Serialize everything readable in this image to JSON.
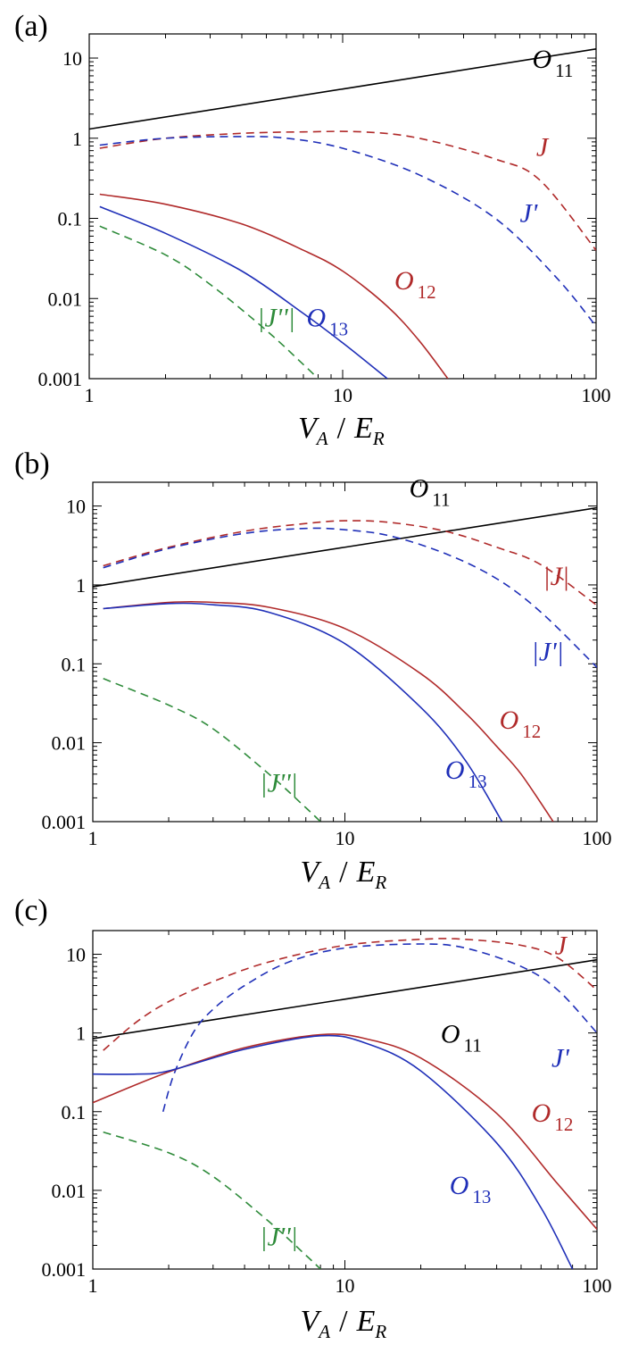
{
  "figure": {
    "panel_labels": [
      "(a)",
      "(b)",
      "(c)"
    ],
    "x_axis_label": {
      "main1": "V",
      "sub1": "A",
      "sep": "/",
      "main2": "E",
      "sub2": "R"
    },
    "colors": {
      "O11": "#000000",
      "O12": "#b02a2a",
      "O13": "#1f2fb8",
      "J": "#b02a2a",
      "Jp": "#1f2fb8",
      "Jpp": "#2e8b3a"
    }
  },
  "chart_data": [
    {
      "type": "line",
      "panel": "(a)",
      "xscale": "log",
      "yscale": "log",
      "xlim": [
        1,
        100
      ],
      "ylim": [
        0.001,
        20
      ],
      "xticks": [
        "1",
        "10",
        "100"
      ],
      "yticks": [
        "0.001",
        "0.01",
        "0.1",
        "1",
        "10"
      ],
      "xlabel": "V_A / E_R",
      "series": [
        {
          "name": "O11",
          "style": "solid",
          "x": [
            1,
            100
          ],
          "y": [
            1.3,
            13
          ]
        },
        {
          "name": "J",
          "style": "dashed",
          "x": [
            1.1,
            2,
            4,
            7,
            12,
            20,
            40,
            60,
            100
          ],
          "y": [
            0.75,
            1.0,
            1.15,
            1.2,
            1.2,
            1.0,
            0.55,
            0.3,
            0.04
          ]
        },
        {
          "name": "J'",
          "style": "dashed",
          "x": [
            1.1,
            2,
            4,
            6,
            10,
            20,
            40,
            70,
            100
          ],
          "y": [
            0.82,
            1.0,
            1.05,
            1.0,
            0.75,
            0.35,
            0.1,
            0.018,
            0.0045
          ]
        },
        {
          "name": "O12",
          "style": "solid",
          "x": [
            1.1,
            2,
            4,
            7,
            10,
            15,
            20,
            26
          ],
          "y": [
            0.2,
            0.15,
            0.085,
            0.04,
            0.022,
            0.008,
            0.003,
            0.001
          ]
        },
        {
          "name": "O13",
          "style": "solid",
          "x": [
            1.1,
            2,
            4,
            7,
            10,
            15
          ],
          "y": [
            0.14,
            0.065,
            0.022,
            0.0065,
            0.0028,
            0.001
          ]
        },
        {
          "name": "|J''|",
          "style": "dashed",
          "x": [
            1.1,
            2,
            3,
            5,
            7,
            8
          ],
          "y": [
            0.08,
            0.035,
            0.015,
            0.004,
            0.0015,
            0.001
          ]
        }
      ],
      "annotations": [
        {
          "series": "O11",
          "main": "O",
          "sub": "11",
          "x": 56,
          "y": 7.5
        },
        {
          "series": "J",
          "main": "J",
          "sub": "",
          "x": 58,
          "y": 0.6
        },
        {
          "series": "J'",
          "main": "J'",
          "sub": "",
          "x": 50,
          "y": 0.09
        },
        {
          "series": "O12",
          "main": "O",
          "sub": "12",
          "x": 16,
          "y": 0.013
        },
        {
          "series": "O13",
          "main": "O",
          "sub": "13",
          "x": 7.2,
          "y": 0.0045
        },
        {
          "series": "|J''|",
          "main": "|J''|",
          "sub": "",
          "x": 4.6,
          "y": 0.0045
        }
      ]
    },
    {
      "type": "line",
      "panel": "(b)",
      "xscale": "log",
      "yscale": "log",
      "xlim": [
        1,
        100
      ],
      "ylim": [
        0.001,
        20
      ],
      "xticks": [
        "1",
        "10",
        "100"
      ],
      "yticks": [
        "0.001",
        "0.01",
        "0.1",
        "1",
        "10"
      ],
      "xlabel": "V_A / E_R",
      "series": [
        {
          "name": "O11",
          "style": "solid",
          "x": [
            1,
            100
          ],
          "y": [
            0.95,
            9.5
          ]
        },
        {
          "name": "|J|",
          "style": "dashed",
          "x": [
            1.1,
            2,
            4,
            7,
            10,
            15,
            25,
            40,
            60,
            100
          ],
          "y": [
            1.75,
            3.0,
            4.8,
            6.0,
            6.5,
            6.2,
            4.8,
            3.0,
            1.8,
            0.55
          ]
        },
        {
          "name": "|J'|",
          "style": "dashed",
          "x": [
            1.1,
            2,
            4,
            7,
            10,
            15,
            25,
            40,
            60,
            100
          ],
          "y": [
            1.65,
            2.9,
            4.5,
            5.2,
            5.0,
            4.2,
            2.5,
            1.2,
            0.45,
            0.09
          ]
        },
        {
          "name": "O12",
          "style": "solid",
          "x": [
            1.1,
            2,
            3,
            5,
            10,
            20,
            30,
            40,
            50,
            67
          ],
          "y": [
            0.5,
            0.6,
            0.6,
            0.52,
            0.28,
            0.075,
            0.024,
            0.009,
            0.004,
            0.001
          ]
        },
        {
          "name": "O13",
          "style": "solid",
          "x": [
            1.1,
            2,
            3,
            5,
            10,
            20,
            30,
            42
          ],
          "y": [
            0.5,
            0.58,
            0.56,
            0.45,
            0.18,
            0.028,
            0.006,
            0.001
          ]
        },
        {
          "name": "|J''|",
          "style": "dashed",
          "x": [
            1.1,
            2,
            3,
            5,
            7,
            8
          ],
          "y": [
            0.065,
            0.03,
            0.015,
            0.004,
            0.0015,
            0.001
          ]
        }
      ],
      "annotations": [
        {
          "series": "O11",
          "main": "O",
          "sub": "11",
          "x": 18,
          "y": 13
        },
        {
          "series": "|J|",
          "main": "|J|",
          "sub": "",
          "x": 61,
          "y": 1.0
        },
        {
          "series": "|J'|",
          "main": "|J'|",
          "sub": "",
          "x": 55,
          "y": 0.11
        },
        {
          "series": "O12",
          "main": "O",
          "sub": "12",
          "x": 41,
          "y": 0.015
        },
        {
          "series": "O13",
          "main": "O",
          "sub": "13",
          "x": 25,
          "y": 0.0035
        },
        {
          "series": "|J''|",
          "main": "|J''|",
          "sub": "",
          "x": 4.6,
          "y": 0.0024
        }
      ]
    },
    {
      "type": "line",
      "panel": "(c)",
      "xscale": "log",
      "yscale": "log",
      "xlim": [
        1,
        100
      ],
      "ylim": [
        0.001,
        20
      ],
      "xticks": [
        "1",
        "10",
        "100"
      ],
      "yticks": [
        "0.001",
        "0.01",
        "0.1",
        "1",
        "10"
      ],
      "xlabel": "V_A / E_R",
      "series": [
        {
          "name": "O11",
          "style": "solid",
          "x": [
            1,
            100
          ],
          "y": [
            0.85,
            8.5
          ]
        },
        {
          "name": "J",
          "style": "dashed",
          "x": [
            1.1,
            1.5,
            2,
            3,
            5,
            10,
            20,
            30,
            50,
            70,
            100
          ],
          "y": [
            0.6,
            1.4,
            2.5,
            4.5,
            8.0,
            13,
            15.5,
            15.5,
            13,
            9.0,
            3.5
          ]
        },
        {
          "name": "J'",
          "style": "dashed",
          "x": [
            1.9,
            2.1,
            2.5,
            3,
            4,
            6,
            10,
            20,
            30,
            50,
            70,
            100
          ],
          "y": [
            0.1,
            0.3,
            1.0,
            2.0,
            4.0,
            8.0,
            12,
            13.5,
            12,
            7.0,
            3.5,
            1.0
          ]
        },
        {
          "name": "O12",
          "style": "solid",
          "x": [
            1,
            2,
            4,
            8,
            12,
            20,
            40,
            70,
            100
          ],
          "y": [
            0.13,
            0.32,
            0.65,
            0.95,
            0.85,
            0.48,
            0.095,
            0.012,
            0.0032
          ]
        },
        {
          "name": "O13",
          "style": "solid",
          "x": [
            1,
            1.5,
            2,
            4,
            8,
            12,
            20,
            40,
            60,
            80
          ],
          "y": [
            0.3,
            0.3,
            0.33,
            0.62,
            0.92,
            0.75,
            0.33,
            0.04,
            0.006,
            0.001
          ]
        },
        {
          "name": "|J''|",
          "style": "dashed",
          "x": [
            1.1,
            2,
            3,
            5,
            7,
            8
          ],
          "y": [
            0.055,
            0.03,
            0.015,
            0.004,
            0.0015,
            0.001
          ]
        }
      ],
      "annotations": [
        {
          "series": "O11",
          "main": "O",
          "sub": "11",
          "x": 24,
          "y": 0.75
        },
        {
          "series": "J",
          "main": "J",
          "sub": "",
          "x": 68,
          "y": 10
        },
        {
          "series": "J'",
          "main": "J'",
          "sub": "",
          "x": 66,
          "y": 0.37
        },
        {
          "series": "O12",
          "main": "O",
          "sub": "12",
          "x": 55,
          "y": 0.075
        },
        {
          "series": "O13",
          "main": "O",
          "sub": "13",
          "x": 26,
          "y": 0.009
        },
        {
          "series": "|J''|",
          "main": "|J''|",
          "sub": "",
          "x": 4.6,
          "y": 0.002
        }
      ]
    }
  ]
}
